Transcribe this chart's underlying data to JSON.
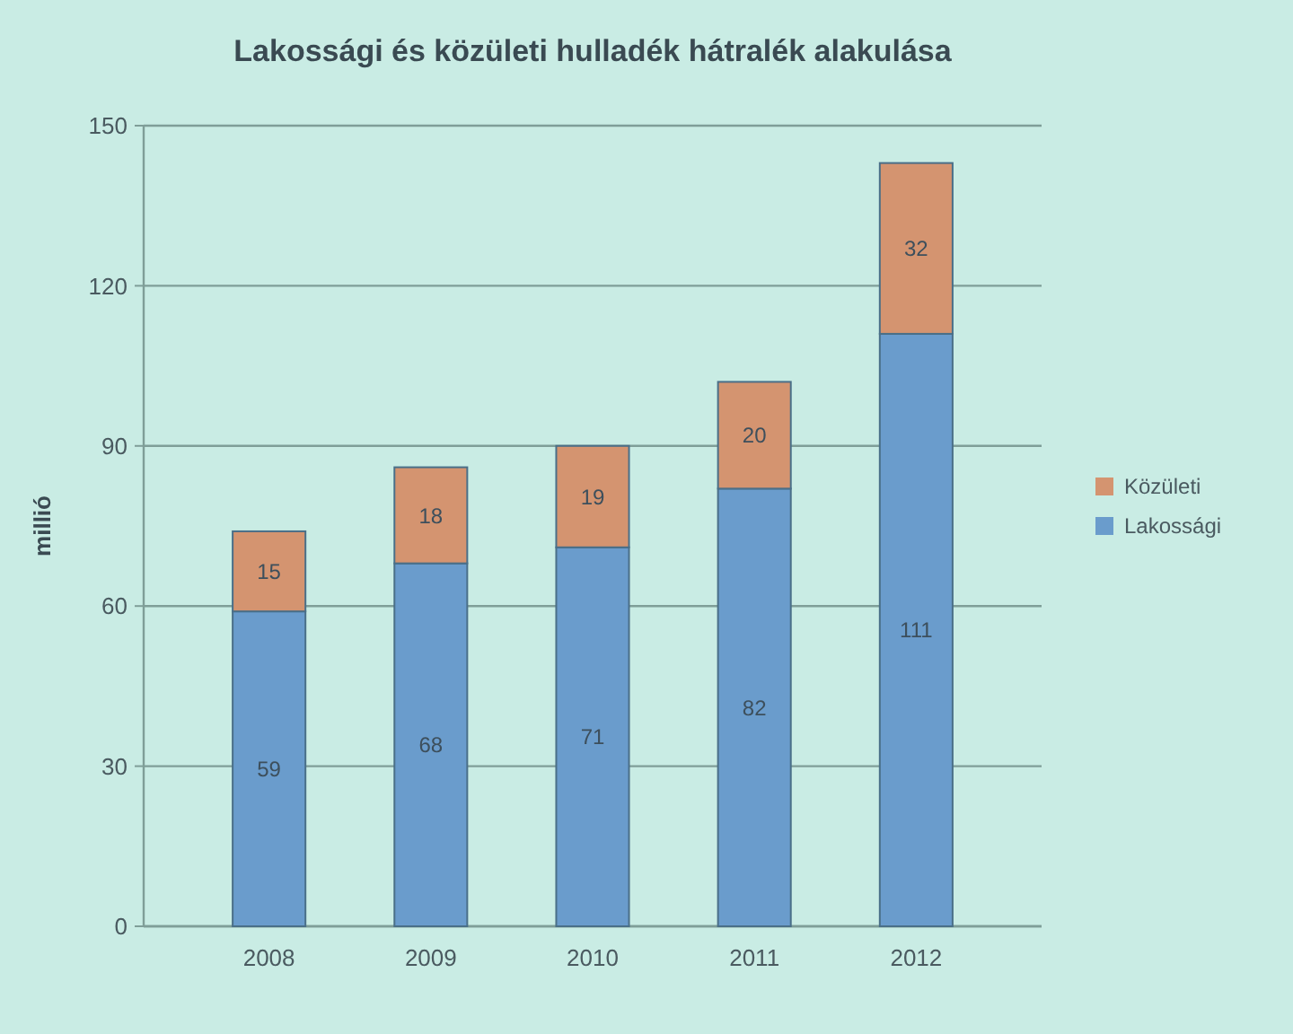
{
  "chart_data": {
    "type": "bar",
    "stacked": true,
    "title": "Lakossági és közületi hulladék hátralék alakulása",
    "ylabel": "millió",
    "categories": [
      "2008",
      "2009",
      "2010",
      "2011",
      "2012"
    ],
    "series": [
      {
        "name": "Lakossági",
        "color": "#6a9ccc",
        "values": [
          59,
          68,
          71,
          82,
          111
        ]
      },
      {
        "name": "Közületi",
        "color": "#d49470",
        "values": [
          15,
          18,
          19,
          20,
          32
        ]
      }
    ],
    "ylim": [
      0,
      150
    ],
    "yticks": [
      0,
      30,
      60,
      90,
      120,
      150
    ],
    "grid": "y",
    "legend": "right",
    "data_labels": true
  }
}
